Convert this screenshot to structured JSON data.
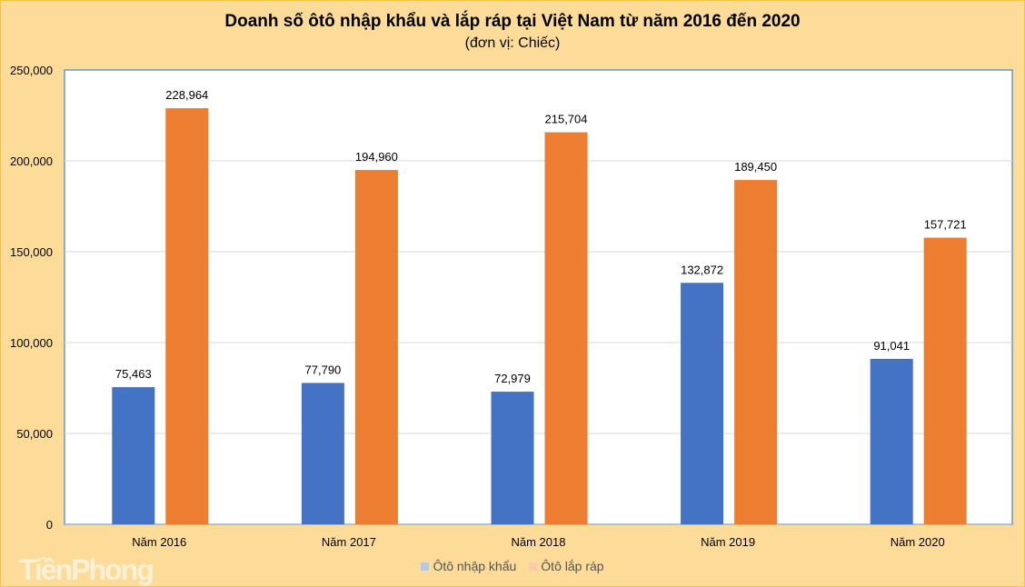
{
  "chart_data": {
    "type": "bar",
    "title": "Doanh số ôtô nhập khẩu và lắp ráp tại Việt Nam từ năm 2016 đến 2020",
    "subtitle": "(đơn vị: Chiếc)",
    "categories": [
      "Năm 2016",
      "Năm 2017",
      "Năm 2018",
      "Năm 2019",
      "Năm 2020"
    ],
    "series": [
      {
        "name": "Ôtô nhập khẩu",
        "color": "#4472c4",
        "values": [
          75463,
          77790,
          72979,
          132872,
          91041
        ]
      },
      {
        "name": "Ôtô lắp ráp",
        "color": "#ed7d31",
        "values": [
          228964,
          194960,
          215704,
          189450,
          157721
        ]
      }
    ],
    "ylim": [
      0,
      250000
    ],
    "yticks": [
      0,
      50000,
      100000,
      150000,
      200000,
      250000
    ],
    "grid": true,
    "legend": "bottom"
  },
  "watermark": "TiềnPhong"
}
